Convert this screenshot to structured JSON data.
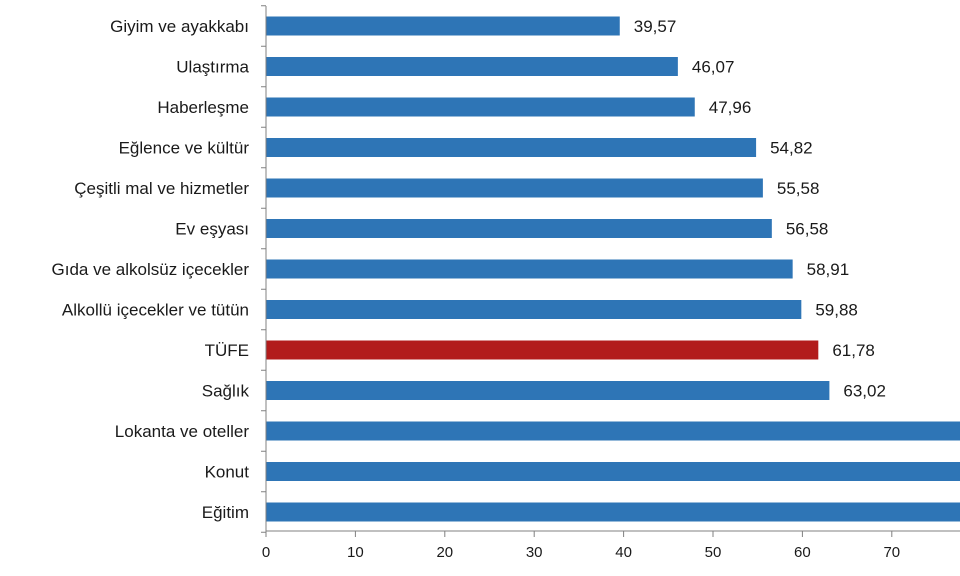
{
  "chart_data": {
    "type": "bar",
    "orientation": "horizontal",
    "categories": [
      "Giyim ve ayakkabı",
      "Ulaştırma",
      "Haberleşme",
      "Eğlence ve kültür",
      "Çeşitli mal ve hizmetler",
      "Ev eşyası",
      "Gıda ve alkolsüz içecekler",
      "Alkollü içecekler ve tütün",
      "TÜFE",
      "Sağlık",
      "Lokanta ve oteller",
      "Konut",
      "Eğitim"
    ],
    "values": [
      39.57,
      46.07,
      47.96,
      54.82,
      55.58,
      56.58,
      58.91,
      59.88,
      61.78,
      63.02,
      80,
      80,
      80
    ],
    "value_labels": [
      "39,57",
      "46,07",
      "47,96",
      "54,82",
      "55,58",
      "56,58",
      "58,91",
      "59,88",
      "61,78",
      "63,02",
      "",
      "",
      ""
    ],
    "xlim": [
      0,
      78
    ],
    "xticks": [
      0,
      10,
      20,
      30,
      40,
      50,
      60,
      70
    ],
    "highlight_category": "TÜFE",
    "colors": {
      "bar": "#2e75b6",
      "highlight": "#b21c1c",
      "axis": "#808080"
    },
    "grid": false,
    "legend": "none"
  }
}
